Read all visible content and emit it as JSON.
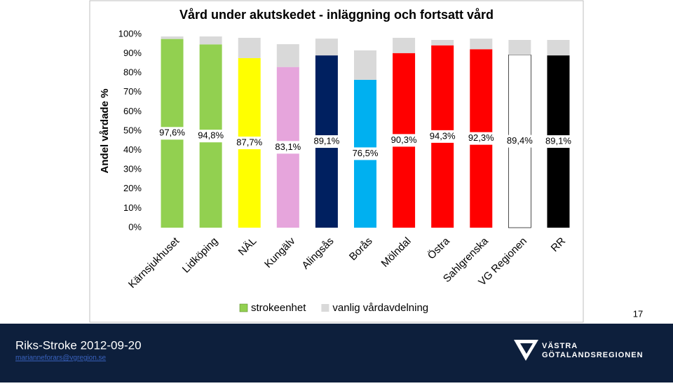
{
  "chart_data": {
    "type": "bar",
    "stacked": true,
    "title": "Vård under akutskedet - inläggning och fortsatt vård",
    "y_label": "Andel vårdade %",
    "categories": [
      "Kärnsjukhuset",
      "Lidköping",
      "NÄL",
      "Kungälv",
      "Alingsås",
      "Borås",
      "Mölndal",
      "Östra",
      "Sahlgrenska",
      "VG Regionen",
      "RR"
    ],
    "series": [
      {
        "name": "strokeenhet",
        "color": "#92d050",
        "colors": [
          "#92d050",
          "#92d050",
          "#ffff00",
          "#e6a5dc",
          "#002060",
          "#00b0f0",
          "#ff0000",
          "#ff0000",
          "#ff0000",
          "#ffffff",
          "#000000"
        ],
        "values": [
          97.6,
          94.8,
          87.7,
          83.1,
          89.1,
          76.5,
          90.3,
          94.3,
          92.3,
          89.4,
          89.1
        ],
        "value_labels": [
          "97,6%",
          "94,8%",
          "87,7%",
          "83,1%",
          "89,1%",
          "76,5%",
          "90,3%",
          "94,3%",
          "92,3%",
          "89,4%",
          "89,1%"
        ]
      },
      {
        "name": "vanlig vårdavdelning",
        "color": "#d9d9d9",
        "values": [
          1.3,
          4.1,
          10.5,
          11.8,
          8.7,
          15.2,
          7.9,
          2.8,
          5.5,
          7.7,
          8.0
        ]
      }
    ],
    "ylim": [
      0,
      100
    ],
    "yticks": [
      {
        "value": 0,
        "label": "0%"
      },
      {
        "value": 10,
        "label": "10%"
      },
      {
        "value": 20,
        "label": "20%"
      },
      {
        "value": 30,
        "label": "30%"
      },
      {
        "value": 40,
        "label": "40%"
      },
      {
        "value": 50,
        "label": "50%"
      },
      {
        "value": 60,
        "label": "60%"
      },
      {
        "value": 70,
        "label": "70%"
      },
      {
        "value": 80,
        "label": "80%"
      },
      {
        "value": 90,
        "label": "90%"
      },
      {
        "value": 100,
        "label": "100%"
      }
    ],
    "legend": "bottom",
    "grid": false
  },
  "slide_number": "17",
  "footer": {
    "title": "Riks-Stroke 2012-09-20",
    "email": "marianneforars@vgregion.se",
    "logo_line1": "VÄSTRA",
    "logo_line2": "GÖTALANDSREGIONEN"
  }
}
